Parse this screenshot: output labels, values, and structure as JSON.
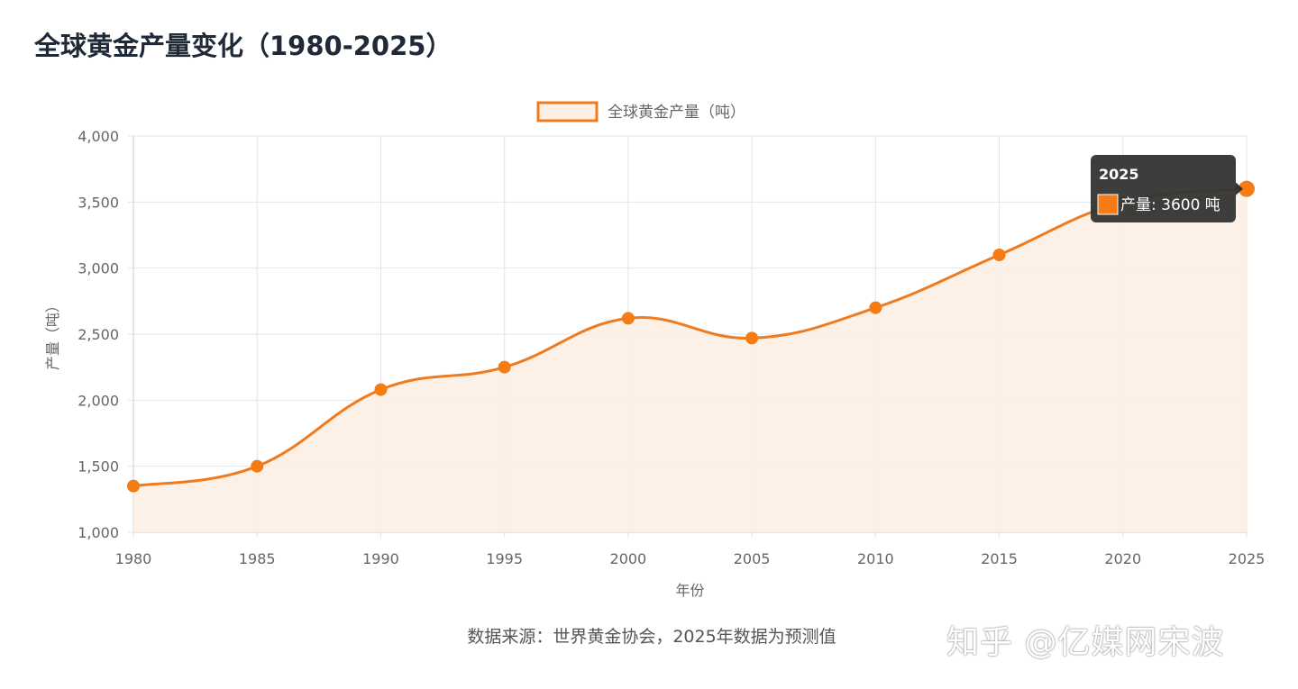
{
  "title": "全球黄金产量变化（1980-2025）",
  "source_note": "数据来源：世界黄金协会，2025年数据为预测值",
  "watermark": "知乎 @亿媒网宋波",
  "chart_data": {
    "type": "area",
    "title": "全球黄金产量变化（1980-2025）",
    "xlabel": "年份",
    "ylabel": "产量（吨）",
    "categories": [
      "1980",
      "1985",
      "1990",
      "1995",
      "2000",
      "2005",
      "2010",
      "2015",
      "2020",
      "2025"
    ],
    "series": [
      {
        "name": "全球黄金产量（吨）",
        "values": [
          1350,
          1500,
          2080,
          2250,
          2620,
          2470,
          2700,
          3100,
          3500,
          3600
        ]
      }
    ],
    "ylim": [
      1000,
      4000
    ],
    "yticks": [
      "1,000",
      "1,500",
      "2,000",
      "2,500",
      "3,000",
      "3,500",
      "4,000"
    ],
    "ytick_values": [
      1000,
      1500,
      2000,
      2500,
      3000,
      3500,
      4000
    ],
    "grid": true,
    "legend_position": "top",
    "colors": {
      "line": "#f07a1e",
      "fill": "#fdefe4",
      "point": "#f57c14",
      "tooltip_bg": "#333333"
    },
    "tooltip": {
      "title": "2025",
      "label": "产量: 3600 吨",
      "index": 9
    }
  }
}
